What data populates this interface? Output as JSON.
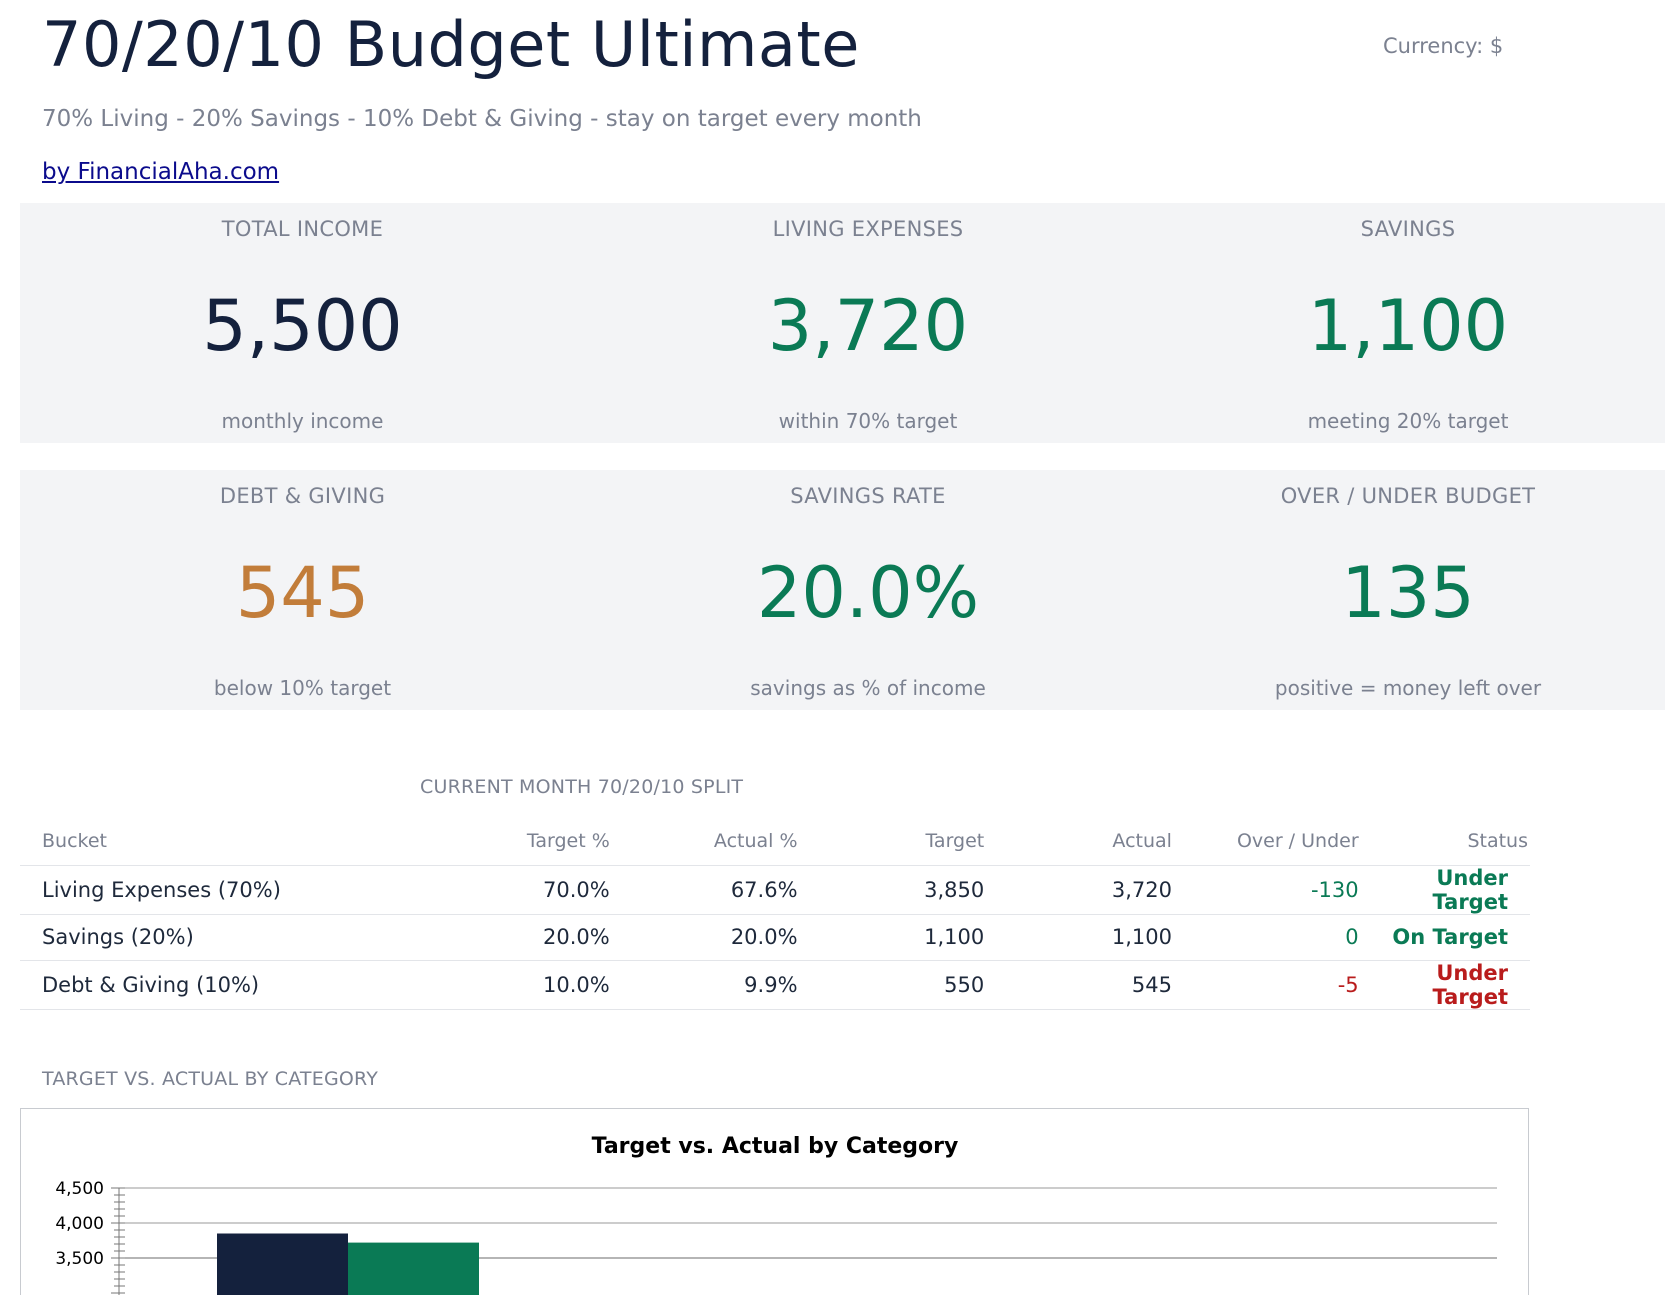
{
  "header": {
    "title": "70/20/10 Budget Ultimate",
    "currency": "Currency: $",
    "subtitle": "70% Living - 20% Savings - 10% Debt & Giving - stay on target every month",
    "byline": "by FinancialAha.com"
  },
  "kpis": [
    {
      "label": "TOTAL INCOME",
      "value": "5,500",
      "sub": "monthly income",
      "color": "#14213d"
    },
    {
      "label": "LIVING EXPENSES",
      "value": "3,720",
      "sub": "within 70% target",
      "color": "#0a7a55"
    },
    {
      "label": "SAVINGS",
      "value": "1,100",
      "sub": "meeting 20% target",
      "color": "#0a7a55"
    },
    {
      "label": "DEBT & GIVING",
      "value": "545",
      "sub": "below 10% target",
      "color": "#c27d3a"
    },
    {
      "label": "SAVINGS RATE",
      "value": "20.0%",
      "sub": "savings as % of income",
      "color": "#0a7a55"
    },
    {
      "label": "OVER / UNDER BUDGET",
      "value": "135",
      "sub": "positive = money left over",
      "color": "#0a7a55"
    }
  ],
  "split": {
    "section_label": "CURRENT MONTH 70/20/10 SPLIT",
    "columns": [
      "Bucket",
      "Target %",
      "Actual %",
      "Target",
      "Actual",
      "Over / Under",
      "Status"
    ],
    "rows": [
      {
        "bucket": "Living Expenses (70%)",
        "target_pct": "70.0%",
        "actual_pct": "67.6%",
        "target": "3,850",
        "actual": "3,720",
        "over_under": "-130",
        "status": "Under Target",
        "status_color": "#0a7a55"
      },
      {
        "bucket": "Savings (20%)",
        "target_pct": "20.0%",
        "actual_pct": "20.0%",
        "target": "1,100",
        "actual": "1,100",
        "over_under": "0",
        "status": "On Target",
        "status_color": "#0a7a55"
      },
      {
        "bucket": "Debt & Giving (10%)",
        "target_pct": "10.0%",
        "actual_pct": "9.9%",
        "target": "550",
        "actual": "545",
        "over_under": "-5",
        "status": "Under Target",
        "status_color": "#b91c1c"
      }
    ]
  },
  "chart_section_label": "TARGET VS. ACTUAL BY CATEGORY",
  "chart_data": {
    "type": "bar",
    "title": "Target vs. Actual by Category",
    "categories": [
      "Living Expenses (70%)"
    ],
    "series": [
      {
        "values": [
          3850
        ],
        "color": "#14213d"
      },
      {
        "values": [
          3720
        ],
        "color": "#0a7a55"
      }
    ],
    "y_ticks": [
      "4,500",
      "4,000",
      "3,500"
    ],
    "ylim_visible": [
      3300,
      4500
    ],
    "grid": true
  }
}
